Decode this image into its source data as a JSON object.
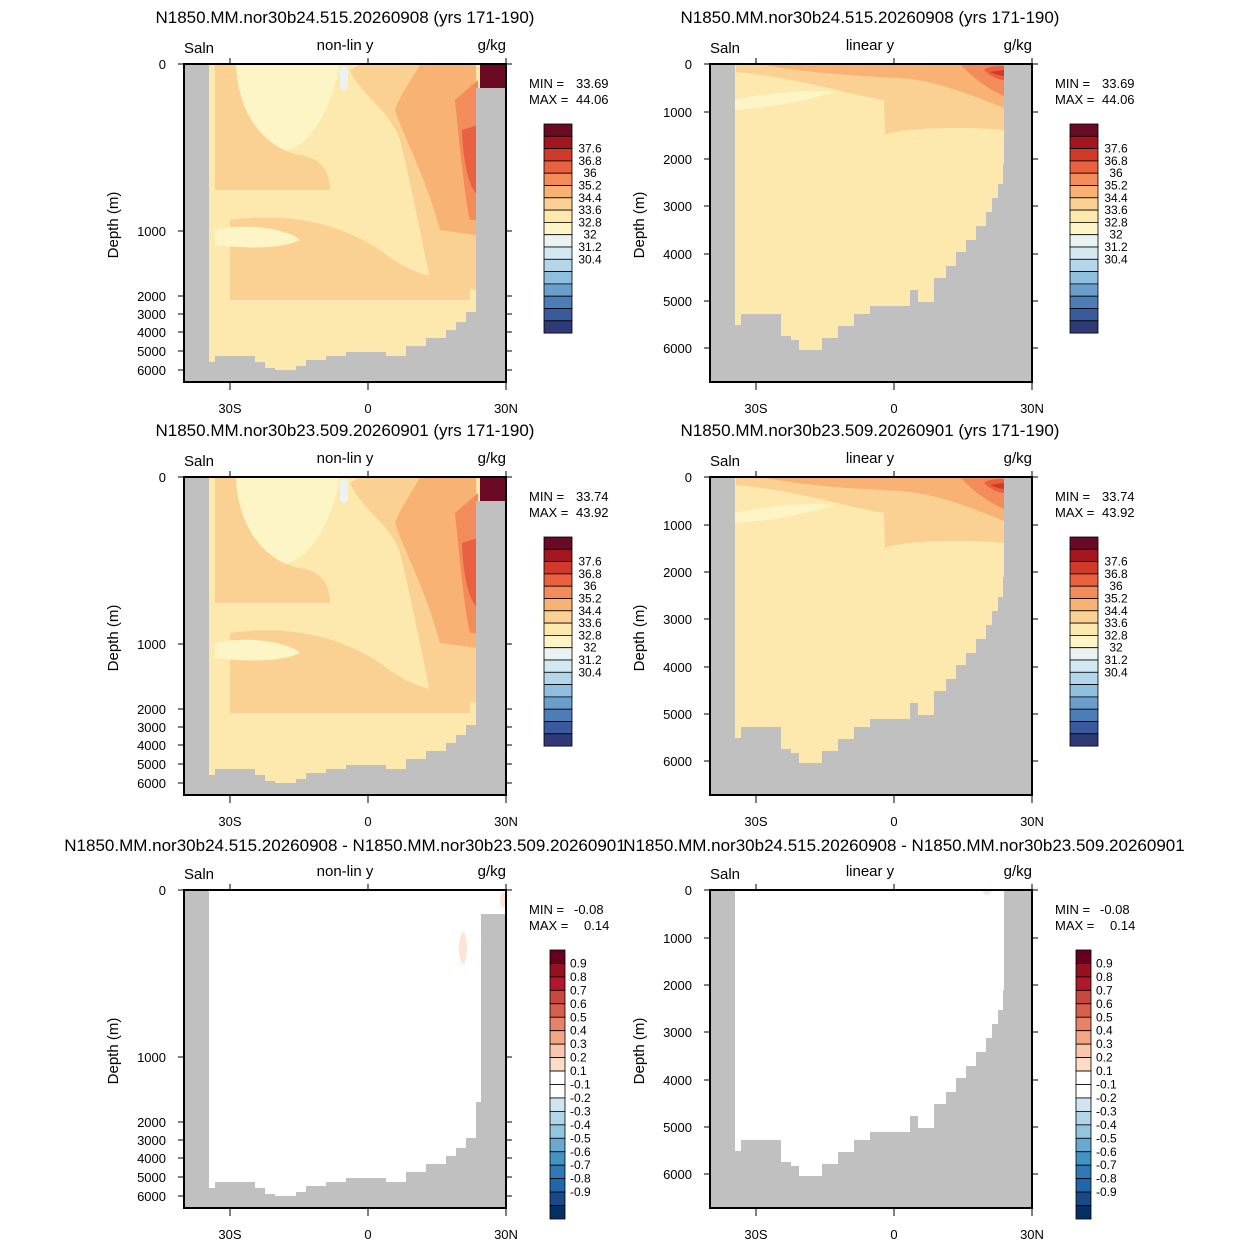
{
  "panels": [
    {
      "title": "N1850.MM.nor30b24.515.20260908 (yrs 171-190)",
      "left_label": "Saln",
      "center_label": "non-lin y",
      "right_label": "g/kg",
      "ylabel": "Depth (m)",
      "yticks": [
        "0",
        "1000",
        "2000",
        "3000",
        "4000",
        "5000",
        "6000"
      ],
      "xticks": [
        "30S",
        "0",
        "30N"
      ],
      "min_label": "MIN =",
      "min_value": "33.69",
      "max_label": "MAX =",
      "max_value": "44.06",
      "colorbar": [
        "37.6",
        "36.8",
        "36",
        "35.2",
        "34.4",
        "33.6",
        "32.8",
        "32",
        "31.2",
        "30.4"
      ]
    },
    {
      "title": "N1850.MM.nor30b24.515.20260908 (yrs 171-190)",
      "left_label": "Saln",
      "center_label": "linear y",
      "right_label": "g/kg",
      "ylabel": "Depth (m)",
      "yticks": [
        "0",
        "1000",
        "2000",
        "3000",
        "4000",
        "5000",
        "6000"
      ],
      "xticks": [
        "30S",
        "0",
        "30N"
      ],
      "min_label": "MIN =",
      "min_value": "33.69",
      "max_label": "MAX =",
      "max_value": "44.06",
      "colorbar": [
        "37.6",
        "36.8",
        "36",
        "35.2",
        "34.4",
        "33.6",
        "32.8",
        "32",
        "31.2",
        "30.4"
      ]
    },
    {
      "title": "N1850.MM.nor30b23.509.20260901 (yrs 171-190)",
      "left_label": "Saln",
      "center_label": "non-lin y",
      "right_label": "g/kg",
      "ylabel": "Depth (m)",
      "yticks": [
        "0",
        "1000",
        "2000",
        "3000",
        "4000",
        "5000",
        "6000"
      ],
      "xticks": [
        "30S",
        "0",
        "30N"
      ],
      "min_label": "MIN =",
      "min_value": "33.74",
      "max_label": "MAX =",
      "max_value": "43.92",
      "colorbar": [
        "37.6",
        "36.8",
        "36",
        "35.2",
        "34.4",
        "33.6",
        "32.8",
        "32",
        "31.2",
        "30.4"
      ]
    },
    {
      "title": "N1850.MM.nor30b23.509.20260901 (yrs 171-190)",
      "left_label": "Saln",
      "center_label": "linear y",
      "right_label": "g/kg",
      "ylabel": "Depth (m)",
      "yticks": [
        "0",
        "1000",
        "2000",
        "3000",
        "4000",
        "5000",
        "6000"
      ],
      "xticks": [
        "30S",
        "0",
        "30N"
      ],
      "min_label": "MIN =",
      "min_value": "33.74",
      "max_label": "MAX =",
      "max_value": "43.92",
      "colorbar": [
        "37.6",
        "36.8",
        "36",
        "35.2",
        "34.4",
        "33.6",
        "32.8",
        "32",
        "31.2",
        "30.4"
      ]
    },
    {
      "title": "N1850.MM.nor30b24.515.20260908 - N1850.MM.nor30b23.509.20260901",
      "left_label": "Saln",
      "center_label": "non-lin y",
      "right_label": "g/kg",
      "ylabel": "Depth (m)",
      "yticks": [
        "0",
        "1000",
        "2000",
        "3000",
        "4000",
        "5000",
        "6000"
      ],
      "xticks": [
        "30S",
        "0",
        "30N"
      ],
      "min_label": "MIN =",
      "min_value": "-0.08",
      "max_label": "MAX =",
      "max_value": "0.14",
      "colorbar": [
        "0.9",
        "0.8",
        "0.7",
        "0.6",
        "0.5",
        "0.4",
        "0.3",
        "0.2",
        "0.1",
        "-0.1",
        "-0.2",
        "-0.3",
        "-0.4",
        "-0.5",
        "-0.6",
        "-0.7",
        "-0.8",
        "-0.9"
      ]
    },
    {
      "title": "N1850.MM.nor30b24.515.20260908 - N1850.MM.nor30b23.509.20260901",
      "left_label": "Saln",
      "center_label": "linear y",
      "right_label": "g/kg",
      "ylabel": "Depth (m)",
      "yticks": [
        "0",
        "1000",
        "2000",
        "3000",
        "4000",
        "5000",
        "6000"
      ],
      "xticks": [
        "30S",
        "0",
        "30N"
      ],
      "min_label": "MIN =",
      "min_value": "-0.08",
      "max_label": "MAX =",
      "max_value": "0.14",
      "colorbar": [
        "0.9",
        "0.8",
        "0.7",
        "0.6",
        "0.5",
        "0.4",
        "0.3",
        "0.2",
        "0.1",
        "-0.1",
        "-0.2",
        "-0.3",
        "-0.4",
        "-0.5",
        "-0.6",
        "-0.7",
        "-0.8",
        "-0.9"
      ]
    }
  ],
  "colors": {
    "land": "#c0c0c0",
    "salinity_scale": [
      "#6a0a24",
      "#a3151f",
      "#cf3a2a",
      "#e9613f",
      "#f48b5a",
      "#f8b274",
      "#fbd193",
      "#fde9ae",
      "#fdf5c6",
      "#eaf3f1",
      "#d2e8f2",
      "#b4d6ea",
      "#8fbfdf",
      "#6b9fcb",
      "#4d7db7",
      "#3a5a9c",
      "#2d3a76"
    ],
    "difference_scale": [
      "#67001f",
      "#94111f",
      "#b2182b",
      "#c94741",
      "#d6604d",
      "#e58267",
      "#f4a582",
      "#f8c7ad",
      "#fddbc7",
      "#ffffff",
      "#ffffff",
      "#d1e5f0",
      "#b3d5e8",
      "#92c5de",
      "#6aa9cf",
      "#4393c3",
      "#2f78b5",
      "#2166ac",
      "#174a86",
      "#053061"
    ]
  },
  "chart_data": [
    {
      "type": "heatmap",
      "variable": "Saln",
      "units": "g/kg",
      "y_axis": "non-lin y",
      "x": [
        "30S",
        "0",
        "30N"
      ],
      "y": [
        0,
        1000,
        2000,
        3000,
        4000,
        5000,
        6000
      ],
      "min": 33.69,
      "max": 44.06,
      "contour_levels": [
        30.4,
        31.2,
        32,
        32.8,
        33.6,
        34.4,
        35.2,
        36,
        36.8,
        37.6
      ]
    },
    {
      "type": "heatmap",
      "variable": "Saln",
      "units": "g/kg",
      "y_axis": "linear y",
      "x": [
        "30S",
        "0",
        "30N"
      ],
      "y": [
        0,
        1000,
        2000,
        3000,
        4000,
        5000,
        6000
      ],
      "min": 33.69,
      "max": 44.06,
      "contour_levels": [
        30.4,
        31.2,
        32,
        32.8,
        33.6,
        34.4,
        35.2,
        36,
        36.8,
        37.6
      ]
    },
    {
      "type": "heatmap",
      "variable": "Saln",
      "units": "g/kg",
      "y_axis": "non-lin y",
      "x": [
        "30S",
        "0",
        "30N"
      ],
      "y": [
        0,
        1000,
        2000,
        3000,
        4000,
        5000,
        6000
      ],
      "min": 33.74,
      "max": 43.92,
      "contour_levels": [
        30.4,
        31.2,
        32,
        32.8,
        33.6,
        34.4,
        35.2,
        36,
        36.8,
        37.6
      ]
    },
    {
      "type": "heatmap",
      "variable": "Saln",
      "units": "g/kg",
      "y_axis": "linear y",
      "x": [
        "30S",
        "0",
        "30N"
      ],
      "y": [
        0,
        1000,
        2000,
        3000,
        4000,
        5000,
        6000
      ],
      "min": 33.74,
      "max": 43.92,
      "contour_levels": [
        30.4,
        31.2,
        32,
        32.8,
        33.6,
        34.4,
        35.2,
        36,
        36.8,
        37.6
      ]
    },
    {
      "type": "heatmap",
      "variable": "Saln",
      "units": "g/kg",
      "y_axis": "non-lin y",
      "x": [
        "30S",
        "0",
        "30N"
      ],
      "y": [
        0,
        1000,
        2000,
        3000,
        4000,
        5000,
        6000
      ],
      "min": -0.08,
      "max": 0.14,
      "contour_levels": [
        -0.9,
        -0.8,
        -0.7,
        -0.6,
        -0.5,
        -0.4,
        -0.3,
        -0.2,
        -0.1,
        0.1,
        0.2,
        0.3,
        0.4,
        0.5,
        0.6,
        0.7,
        0.8,
        0.9
      ]
    },
    {
      "type": "heatmap",
      "variable": "Saln",
      "units": "g/kg",
      "y_axis": "linear y",
      "x": [
        "30S",
        "0",
        "30N"
      ],
      "y": [
        0,
        1000,
        2000,
        3000,
        4000,
        5000,
        6000
      ],
      "min": -0.08,
      "max": 0.14,
      "contour_levels": [
        -0.9,
        -0.8,
        -0.7,
        -0.6,
        -0.5,
        -0.4,
        -0.3,
        -0.2,
        -0.1,
        0.1,
        0.2,
        0.3,
        0.4,
        0.5,
        0.6,
        0.7,
        0.8,
        0.9
      ]
    }
  ]
}
